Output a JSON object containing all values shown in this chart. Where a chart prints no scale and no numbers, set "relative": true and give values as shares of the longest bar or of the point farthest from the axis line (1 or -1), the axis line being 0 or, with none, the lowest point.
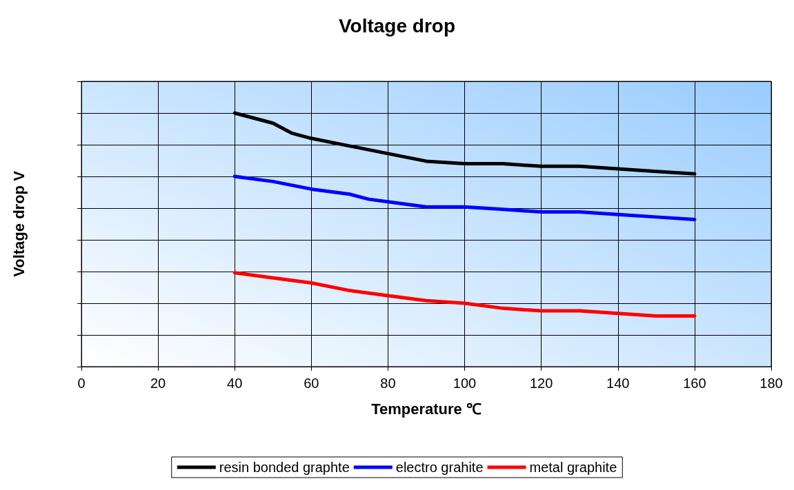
{
  "chart_data": {
    "type": "line",
    "title": "Voltage drop",
    "xlabel": "Temperature ℃",
    "ylabel": "Voltage drop V",
    "relative": true,
    "xlim": [
      0,
      180
    ],
    "xticks": [
      0,
      20,
      40,
      60,
      80,
      100,
      120,
      140,
      160,
      180
    ],
    "grid": true,
    "legend": "bottom",
    "tick_labels": "x",
    "marker": "none",
    "line_style": "solid",
    "series": [
      {
        "name": "resin bonded graphte",
        "color": "#000000",
        "x": [
          40,
          50,
          55,
          60,
          70,
          80,
          90,
          100,
          105,
          110,
          120,
          130,
          140,
          150,
          160
        ],
        "values": [
          1.0,
          0.96,
          0.92,
          0.9,
          0.87,
          0.84,
          0.81,
          0.8,
          0.8,
          0.8,
          0.79,
          0.79,
          0.78,
          0.77,
          0.76
        ]
      },
      {
        "name": "electro grahite",
        "color": "#0000ff",
        "x": [
          40,
          50,
          60,
          70,
          75,
          80,
          85,
          90,
          100,
          110,
          120,
          130,
          140,
          150,
          160
        ],
        "values": [
          0.75,
          0.73,
          0.7,
          0.68,
          0.66,
          0.65,
          0.64,
          0.63,
          0.63,
          0.62,
          0.61,
          0.61,
          0.6,
          0.59,
          0.58
        ]
      },
      {
        "name": "metal graphite",
        "color": "#ff0000",
        "x": [
          40,
          50,
          60,
          70,
          80,
          90,
          100,
          110,
          120,
          130,
          140,
          150,
          160
        ],
        "values": [
          0.37,
          0.35,
          0.33,
          0.3,
          0.28,
          0.26,
          0.25,
          0.23,
          0.22,
          0.22,
          0.21,
          0.2,
          0.2
        ]
      }
    ]
  }
}
